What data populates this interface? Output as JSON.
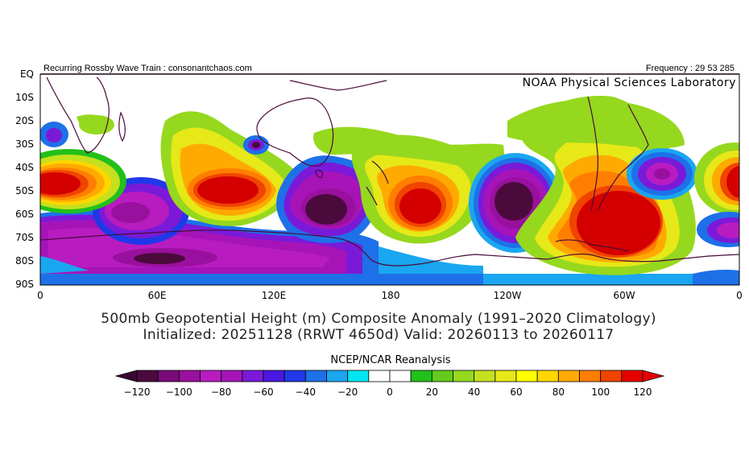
{
  "header": {
    "left": "Recurring Rossby Wave Train : consonantchaos.com",
    "right": "Frequency : 29 53 285",
    "organization": "NOAA Physical Sciences Laboratory"
  },
  "axes": {
    "lat_labels": [
      "EQ",
      "10S",
      "20S",
      "30S",
      "40S",
      "50S",
      "60S",
      "70S",
      "80S",
      "90S"
    ],
    "lon_labels": [
      "0",
      "60E",
      "120E",
      "180",
      "120W",
      "60W",
      "0"
    ]
  },
  "titles": {
    "line1": "500mb Geopotential Height (m) Composite Anomaly (1991–2020 Climatology)",
    "line2": "Initialized: 20251128 (RRWT 4650d) Valid: 20260113 to 20260117"
  },
  "source": "NCEP/NCAR Reanalysis",
  "colorbar": {
    "labels": [
      "−120",
      "−100",
      "−80",
      "−60",
      "−40",
      "−20",
      "0",
      "20",
      "40",
      "60",
      "80",
      "100",
      "120"
    ],
    "colors": [
      "#4b0a3c",
      "#7a0a78",
      "#9a109e",
      "#b81cc0",
      "#a614b8",
      "#7a1ad8",
      "#4a18e0",
      "#2038e8",
      "#1e70e8",
      "#1aa6f0",
      "#00e6f0",
      "#ffffff",
      "#ffffff",
      "#22c01a",
      "#62cc1c",
      "#96d81e",
      "#c4e01e",
      "#e6e818",
      "#ffff00",
      "#ffd600",
      "#ffaa00",
      "#ff7e00",
      "#f04400",
      "#e60000"
    ]
  },
  "colors": {
    "strong_positive": "#d40000",
    "positive": "#ff8a00",
    "weak_positive": "#96d81e",
    "strong_negative": "#4b0a3c",
    "negative": "#a020c8",
    "weak_negative": "#1e70e8",
    "coastline": "#4a0a3a"
  }
}
